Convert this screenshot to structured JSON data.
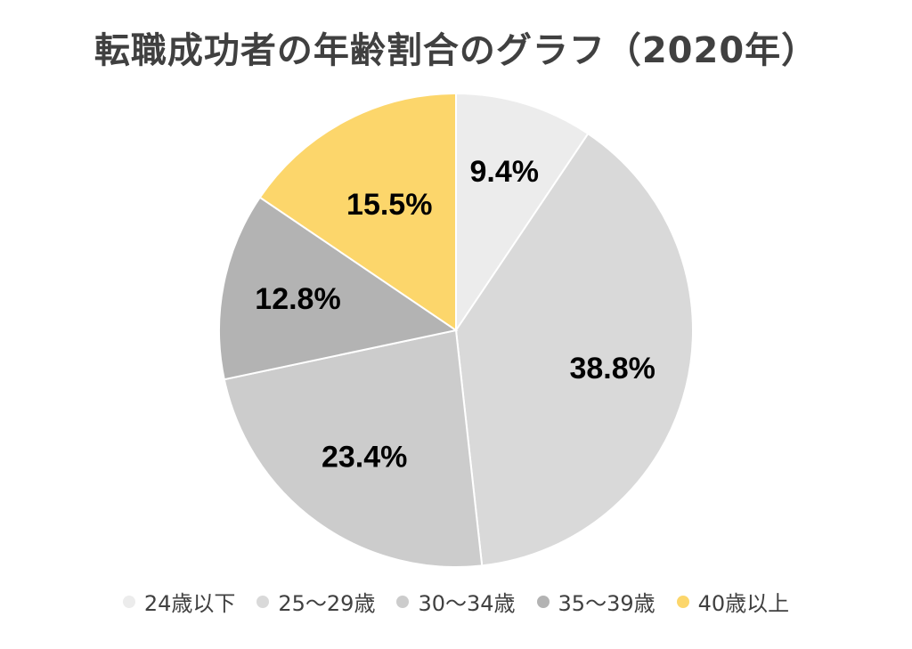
{
  "chart_data": {
    "type": "pie",
    "title": "転職成功者の年齢割合のグラフ（2020年）",
    "categories": [
      "24歳以下",
      "25〜29歳",
      "30〜34歳",
      "35〜39歳",
      "40歳以上"
    ],
    "values": [
      9.4,
      38.8,
      23.4,
      12.8,
      15.5
    ],
    "data_labels": [
      "9.4%",
      "38.8%",
      "23.4%",
      "12.8%",
      "15.5%"
    ],
    "colors": [
      "#ececec",
      "#d9d9d9",
      "#cccccc",
      "#b3b3b3",
      "#fcd66b"
    ],
    "start_angle": "12 o'clock",
    "direction": "clockwise",
    "legend": "bottom"
  }
}
